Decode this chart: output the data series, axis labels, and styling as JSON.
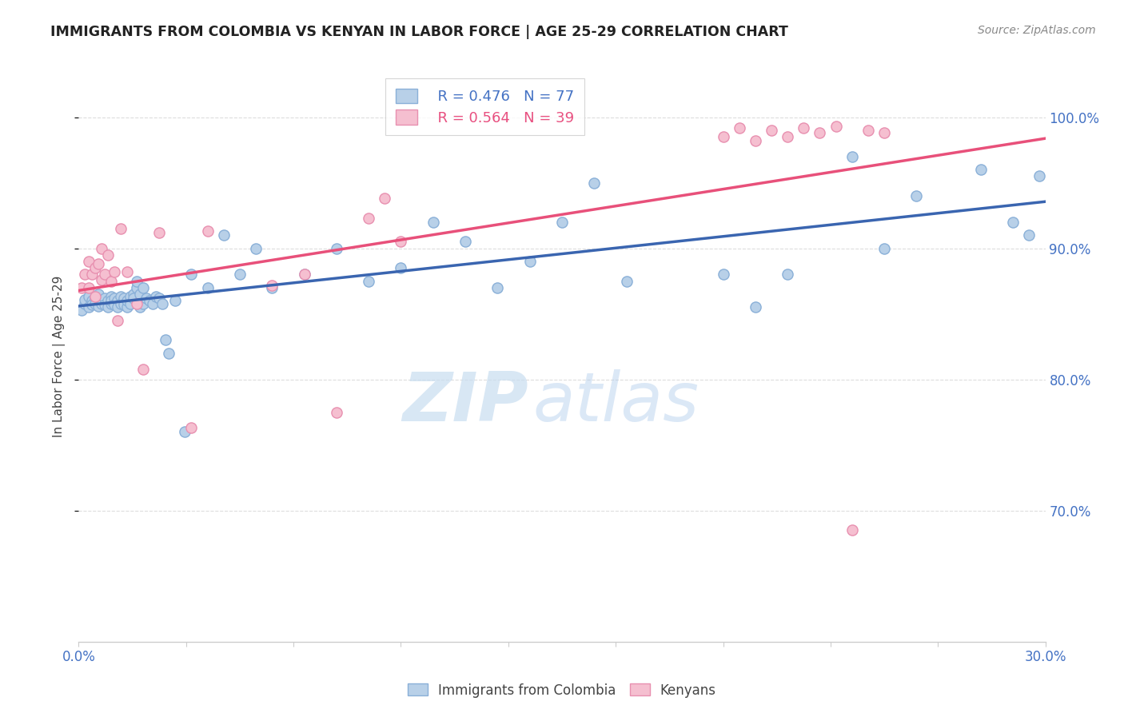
{
  "title": "IMMIGRANTS FROM COLOMBIA VS KENYAN IN LABOR FORCE | AGE 25-29 CORRELATION CHART",
  "source": "Source: ZipAtlas.com",
  "ylabel": "In Labor Force | Age 25-29",
  "xlim": [
    0.0,
    0.3
  ],
  "ylim": [
    0.6,
    1.035
  ],
  "legend_blue_R": "R = 0.476",
  "legend_blue_N": "N = 77",
  "legend_pink_R": "R = 0.564",
  "legend_pink_N": "N = 39",
  "blue_color": "#b8d0e8",
  "blue_edge": "#8ab0d8",
  "blue_line": "#3a65b0",
  "pink_color": "#f5bfd0",
  "pink_edge": "#e890b0",
  "pink_line": "#e8507a",
  "blue_scatter_x": [
    0.001,
    0.002,
    0.002,
    0.003,
    0.003,
    0.004,
    0.004,
    0.005,
    0.005,
    0.006,
    0.006,
    0.007,
    0.007,
    0.008,
    0.008,
    0.009,
    0.009,
    0.01,
    0.01,
    0.01,
    0.011,
    0.011,
    0.012,
    0.012,
    0.013,
    0.013,
    0.014,
    0.014,
    0.015,
    0.015,
    0.016,
    0.016,
    0.017,
    0.017,
    0.018,
    0.018,
    0.019,
    0.019,
    0.02,
    0.02,
    0.021,
    0.022,
    0.023,
    0.024,
    0.025,
    0.026,
    0.027,
    0.028,
    0.03,
    0.033,
    0.035,
    0.04,
    0.045,
    0.05,
    0.055,
    0.06,
    0.07,
    0.08,
    0.09,
    0.1,
    0.11,
    0.12,
    0.13,
    0.14,
    0.15,
    0.16,
    0.17,
    0.2,
    0.21,
    0.22,
    0.24,
    0.25,
    0.26,
    0.28,
    0.29,
    0.295,
    0.298
  ],
  "blue_scatter_y": [
    0.853,
    0.858,
    0.861,
    0.863,
    0.855,
    0.86,
    0.857,
    0.862,
    0.858,
    0.856,
    0.865,
    0.86,
    0.858,
    0.862,
    0.857,
    0.86,
    0.855,
    0.863,
    0.858,
    0.86,
    0.862,
    0.857,
    0.86,
    0.855,
    0.863,
    0.858,
    0.862,
    0.857,
    0.855,
    0.86,
    0.863,
    0.858,
    0.865,
    0.862,
    0.87,
    0.875,
    0.865,
    0.855,
    0.87,
    0.858,
    0.862,
    0.86,
    0.858,
    0.863,
    0.862,
    0.858,
    0.83,
    0.82,
    0.86,
    0.76,
    0.88,
    0.87,
    0.91,
    0.88,
    0.9,
    0.87,
    0.88,
    0.9,
    0.875,
    0.885,
    0.92,
    0.905,
    0.87,
    0.89,
    0.92,
    0.95,
    0.875,
    0.88,
    0.855,
    0.88,
    0.97,
    0.9,
    0.94,
    0.96,
    0.92,
    0.91,
    0.955
  ],
  "pink_scatter_x": [
    0.001,
    0.002,
    0.003,
    0.003,
    0.004,
    0.005,
    0.005,
    0.006,
    0.007,
    0.007,
    0.008,
    0.009,
    0.01,
    0.011,
    0.012,
    0.013,
    0.015,
    0.018,
    0.02,
    0.025,
    0.035,
    0.04,
    0.06,
    0.07,
    0.08,
    0.09,
    0.095,
    0.1,
    0.2,
    0.205,
    0.21,
    0.215,
    0.22,
    0.225,
    0.23,
    0.235,
    0.24,
    0.245,
    0.25
  ],
  "pink_scatter_y": [
    0.87,
    0.88,
    0.87,
    0.89,
    0.88,
    0.885,
    0.863,
    0.888,
    0.876,
    0.9,
    0.88,
    0.895,
    0.875,
    0.882,
    0.845,
    0.915,
    0.882,
    0.858,
    0.808,
    0.912,
    0.763,
    0.913,
    0.872,
    0.88,
    0.775,
    0.923,
    0.938,
    0.905,
    0.985,
    0.992,
    0.982,
    0.99,
    0.985,
    0.992,
    0.988,
    0.993,
    0.685,
    0.99,
    0.988
  ],
  "watermark_zip": "ZIP",
  "watermark_atlas": "atlas",
  "marker_size": 90,
  "background_color": "#ffffff",
  "grid_color": "#dddddd",
  "ytick_vals": [
    0.7,
    0.8,
    0.9,
    1.0
  ],
  "ytick_labels": [
    "70.0%",
    "80.0%",
    "90.0%",
    "100.0%"
  ]
}
